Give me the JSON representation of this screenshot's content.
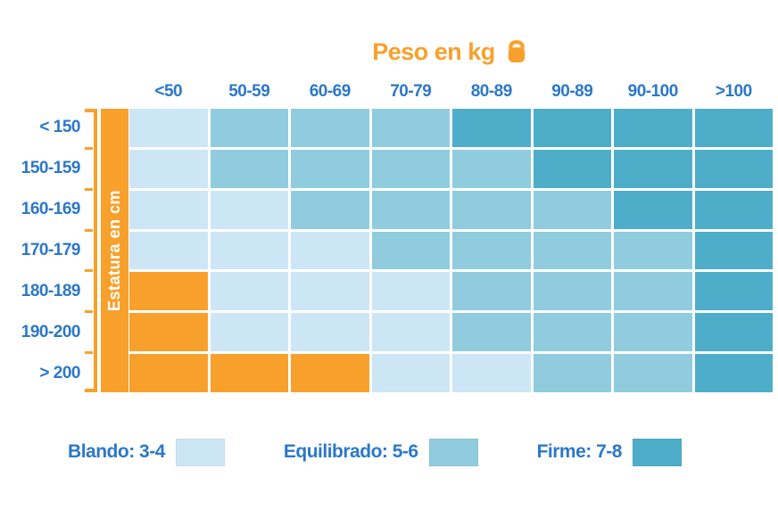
{
  "title": {
    "text": "Peso en kg"
  },
  "y_axis_label": "Estatura en cm",
  "colors": {
    "accent_orange": "#F7A12C",
    "label_blue": "#2B78C8",
    "blando": "#CDE6F6",
    "equilibrado": "#90CCDE",
    "firme": "#4EADC9",
    "naranja": "#F7A12C"
  },
  "chart_data": {
    "type": "heatmap",
    "title": "Peso en kg",
    "x_axis_title": "Peso en kg",
    "y_axis_title": "Estatura en cm",
    "x_categories": [
      "<50",
      "50-59",
      "60-69",
      "70-79",
      "80-89",
      "90-89",
      "90-100",
      ">100"
    ],
    "y_categories": [
      "< 150",
      "150-159",
      "160-169",
      "170-179",
      "180-189",
      "190-200",
      "> 200"
    ],
    "cells": [
      [
        "blando",
        "equilibrado",
        "equilibrado",
        "equilibrado",
        "firme",
        "firme",
        "firme",
        "firme"
      ],
      [
        "blando",
        "equilibrado",
        "equilibrado",
        "equilibrado",
        "equilibrado",
        "firme",
        "firme",
        "firme"
      ],
      [
        "blando",
        "blando",
        "equilibrado",
        "equilibrado",
        "equilibrado",
        "equilibrado",
        "firme",
        "firme"
      ],
      [
        "blando",
        "blando",
        "blando",
        "equilibrado",
        "equilibrado",
        "equilibrado",
        "equilibrado",
        "firme"
      ],
      [
        "naranja",
        "blando",
        "blando",
        "blando",
        "equilibrado",
        "equilibrado",
        "equilibrado",
        "firme"
      ],
      [
        "naranja",
        "blando",
        "blando",
        "blando",
        "equilibrado",
        "equilibrado",
        "equilibrado",
        "firme"
      ],
      [
        "naranja",
        "naranja",
        "naranja",
        "blando",
        "blando",
        "equilibrado",
        "equilibrado",
        "firme"
      ]
    ],
    "legend": [
      {
        "key": "blando",
        "label": "Blando: 3-4"
      },
      {
        "key": "equilibrado",
        "label": "Equilibrado: 5-6"
      },
      {
        "key": "firme",
        "label": "Firme: 7-8"
      }
    ],
    "legend_position": "bottom",
    "grid": true
  },
  "icons": {
    "title_icon": "kettlebell-icon"
  }
}
